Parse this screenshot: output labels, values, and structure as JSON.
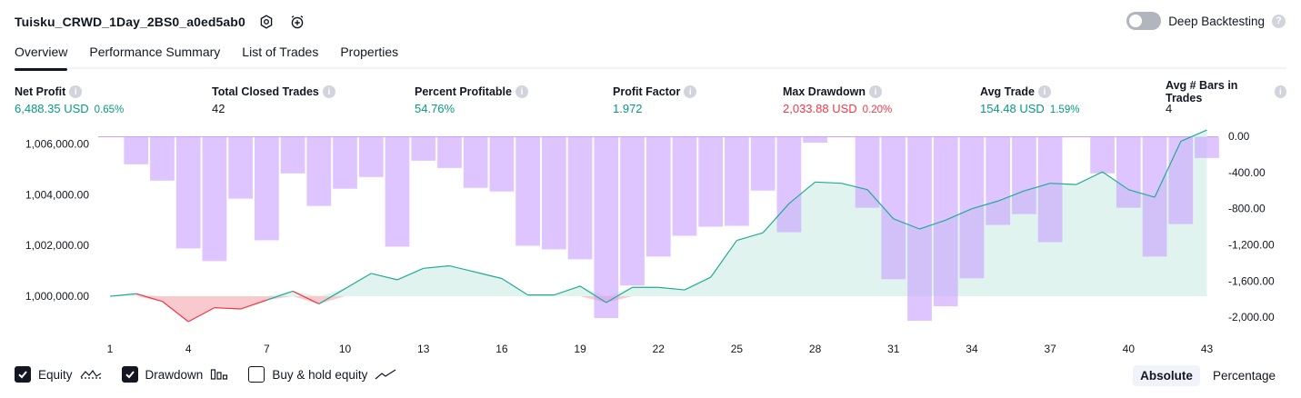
{
  "header": {
    "strategy_name": "Tuisku_CRWD_1Day_2BS0_a0ed5ab0",
    "deep_backtesting_label": "Deep Backtesting",
    "deep_backtesting_enabled": false
  },
  "tabs": [
    {
      "label": "Overview",
      "active": true
    },
    {
      "label": "Performance Summary",
      "active": false
    },
    {
      "label": "List of Trades",
      "active": false
    },
    {
      "label": "Properties",
      "active": false
    }
  ],
  "metrics": {
    "net_profit": {
      "label": "Net Profit",
      "value": "6,488.35 USD",
      "sub": "0.65%"
    },
    "total_closed_trades": {
      "label": "Total Closed Trades",
      "value": "42"
    },
    "percent_profitable": {
      "label": "Percent Profitable",
      "value": "54.76%"
    },
    "profit_factor": {
      "label": "Profit Factor",
      "value": "1.972"
    },
    "max_drawdown": {
      "label": "Max Drawdown",
      "value": "2,033.88 USD",
      "sub": "0.20%"
    },
    "avg_trade": {
      "label": "Avg Trade",
      "value": "154.48 USD",
      "sub": "1.59%"
    },
    "avg_bars": {
      "label": "Avg # Bars in Trades",
      "value": "4"
    }
  },
  "colors": {
    "positive": "#089981",
    "negative": "#f23645",
    "drawdown_bar": "#c9a2ff",
    "equity_line": "#22ab94",
    "equity_fill": "#d5efe8",
    "loss_fill": "#f8c4c8"
  },
  "chart_data": {
    "type": "line",
    "x_ticks": [
      "1",
      "4",
      "7",
      "10",
      "13",
      "16",
      "19",
      "22",
      "25",
      "28",
      "31",
      "34",
      "37",
      "40",
      "43"
    ],
    "left_axis": {
      "ticks": [
        "1,006,000.00",
        "1,004,000.00",
        "1,002,000.00",
        "1,000,000.00"
      ],
      "ylim": [
        999000,
        1006300
      ]
    },
    "right_axis": {
      "ticks": [
        "0.00",
        "-400.00",
        "-800.00",
        "-1,200.00",
        "-1,600.00",
        "-2,000.00"
      ],
      "ylim": [
        -2150,
        0
      ]
    },
    "baseline": 1000000,
    "series": [
      {
        "name": "Equity",
        "values": [
          1000000,
          1000100,
          999800,
          999000,
          999550,
          999500,
          999850,
          1000200,
          999700,
          1000300,
          1000900,
          1000650,
          1001100,
          1001200,
          1000950,
          1000700,
          1000050,
          1000050,
          1000400,
          999750,
          1000350,
          1000350,
          1000250,
          1000750,
          1002200,
          1002500,
          1003650,
          1004500,
          1004450,
          1004200,
          1003050,
          1002650,
          1003000,
          1003450,
          1003750,
          1004150,
          1004450,
          1004400,
          1004900,
          1004200,
          1003900,
          1006100,
          1006550
        ]
      },
      {
        "name": "Drawdown",
        "values": [
          0,
          -300,
          -480,
          -1230,
          -1370,
          -680,
          -1140,
          -400,
          -760,
          -570,
          -440,
          -1210,
          -260,
          -340,
          -560,
          -600,
          -1200,
          -1240,
          -1350,
          -2000,
          -1640,
          -1320,
          -1090,
          -990,
          -980,
          -590,
          -1050,
          -60,
          0,
          -780,
          -1570,
          -2030,
          -1870,
          -1560,
          -970,
          -850,
          -1160,
          0,
          -400,
          -780,
          -1320,
          -960,
          -230
        ]
      }
    ]
  },
  "legend": {
    "equity": {
      "label": "Equity",
      "checked": true
    },
    "drawdown": {
      "label": "Drawdown",
      "checked": true
    },
    "buy_hold": {
      "label": "Buy & hold equity",
      "checked": false
    }
  },
  "view_modes": {
    "absolute": "Absolute",
    "percentage": "Percentage",
    "selected": "absolute"
  }
}
